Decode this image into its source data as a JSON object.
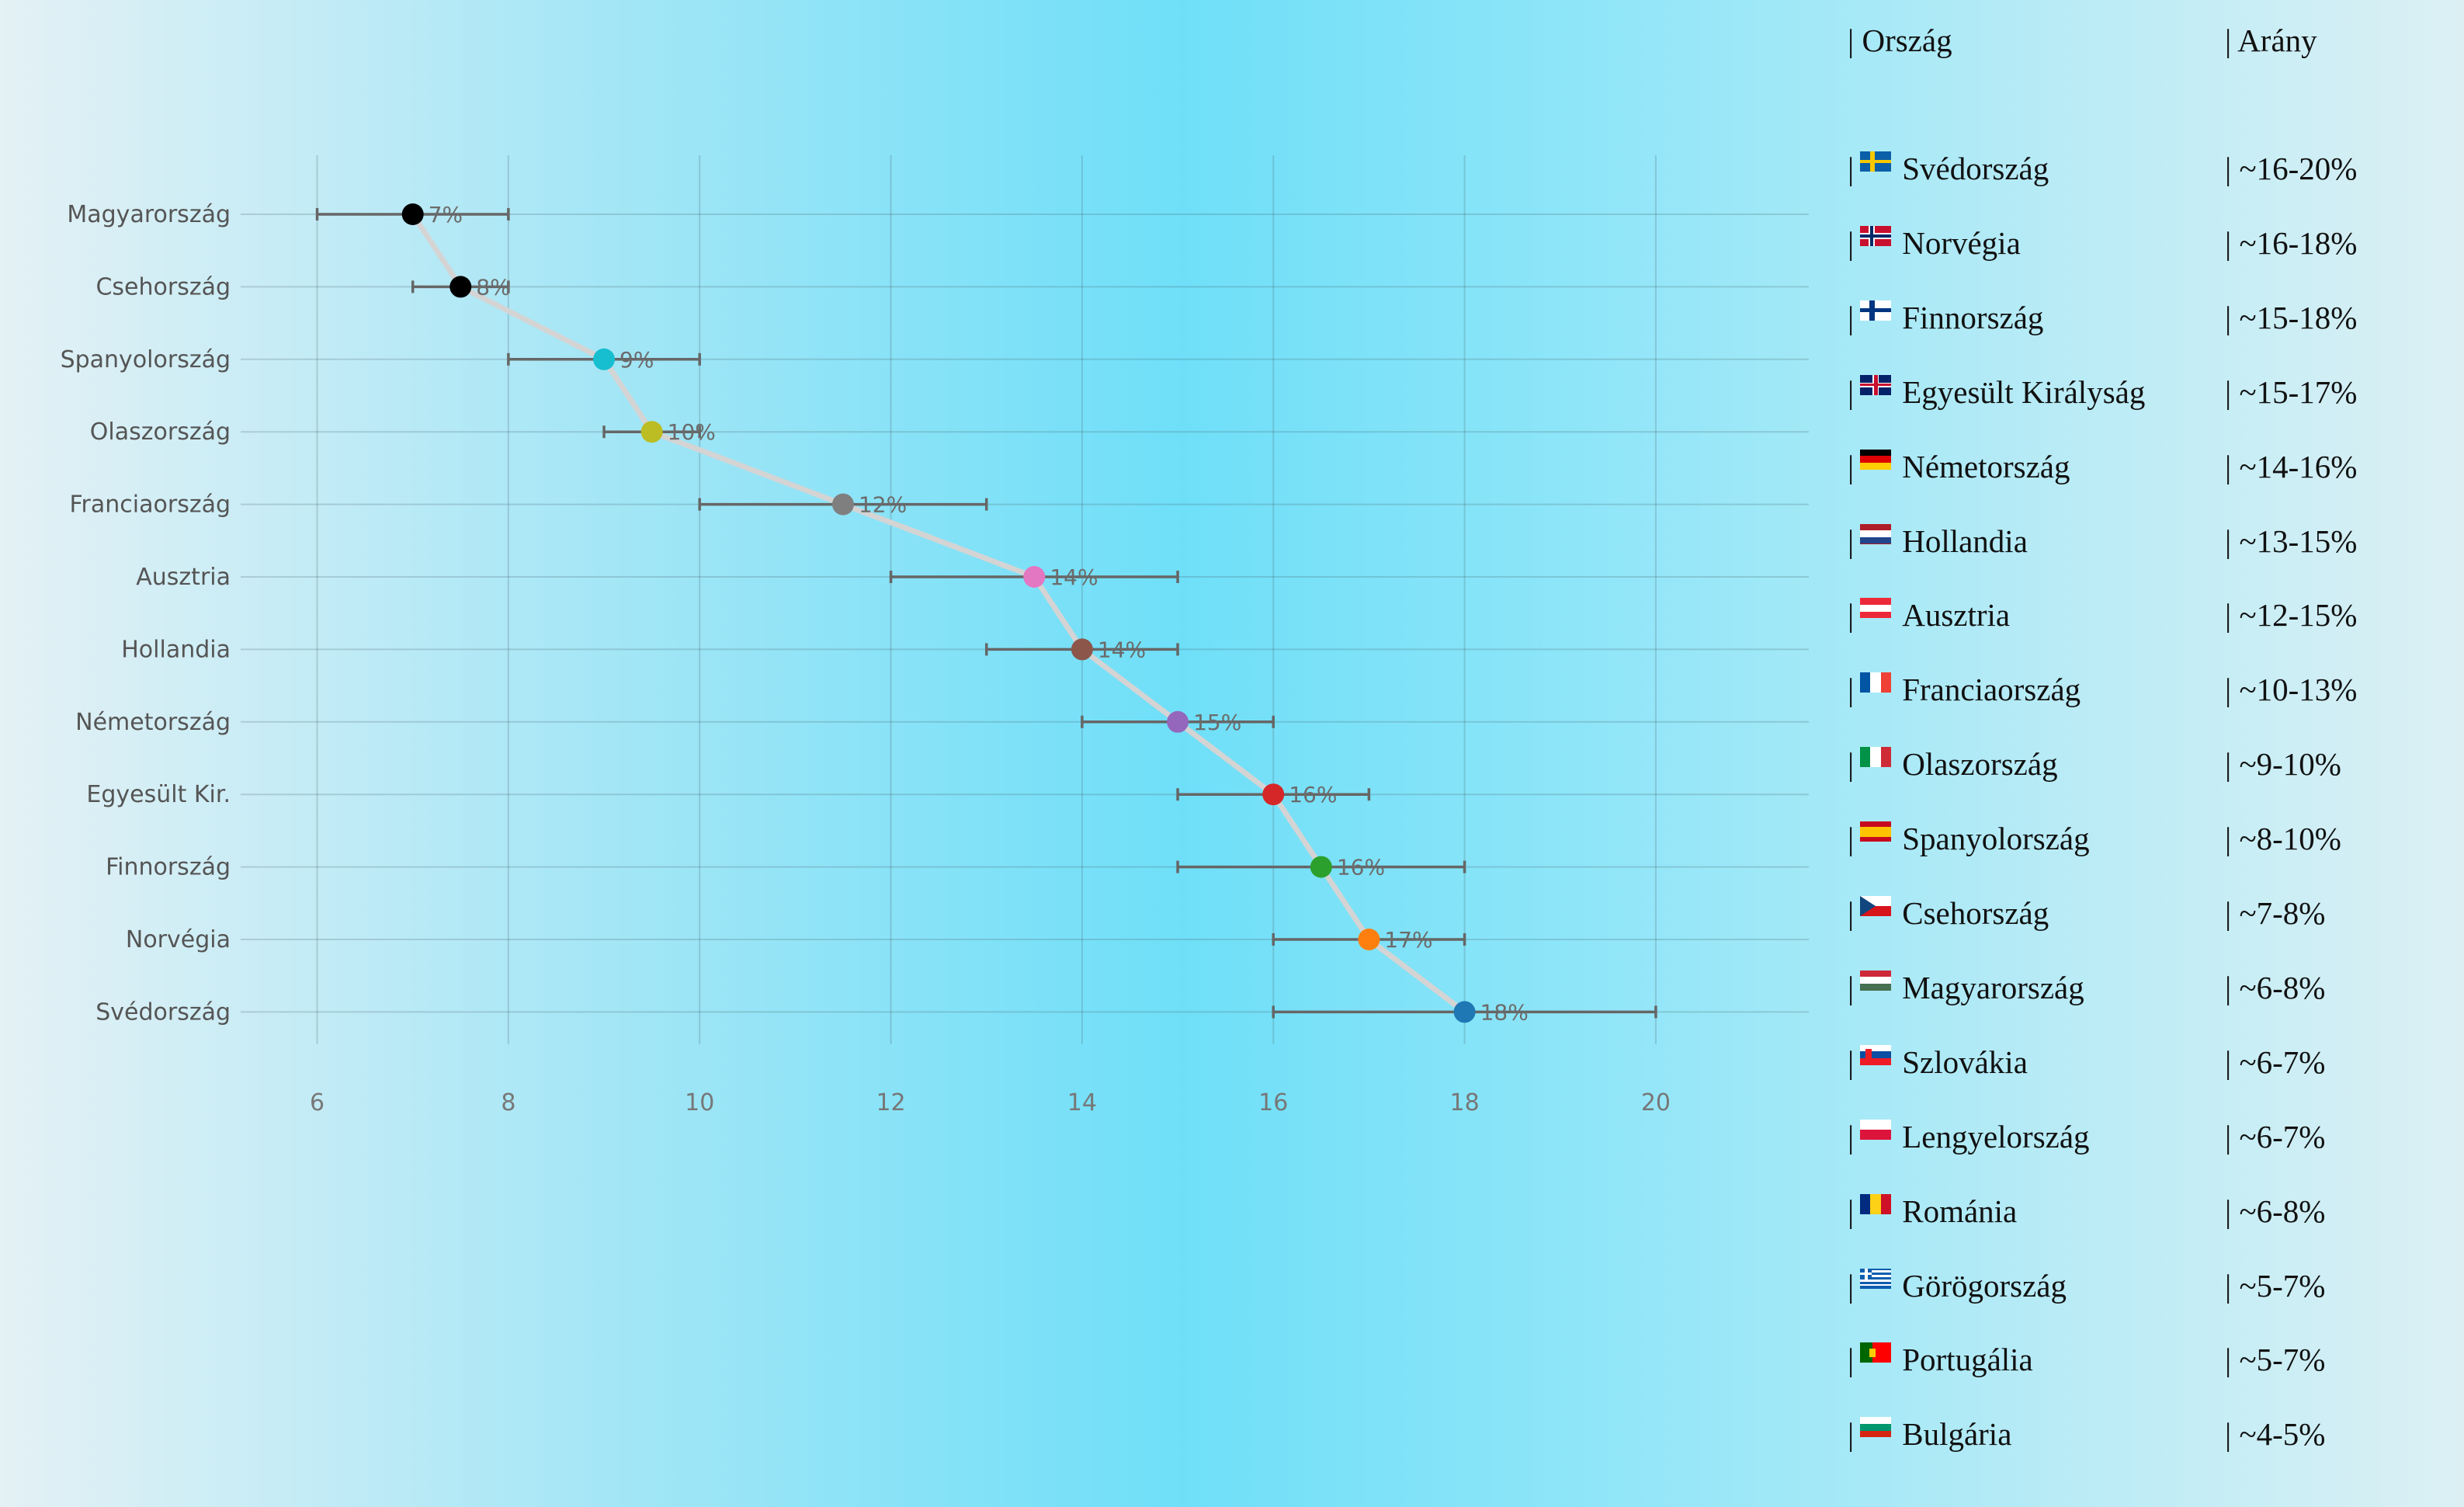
{
  "chart_data": {
    "type": "scatter",
    "title": "",
    "xlabel": "",
    "ylabel": "",
    "xlim": [
      5.2,
      21.6
    ],
    "xticks": [
      6,
      8,
      10,
      12,
      14,
      16,
      18,
      20
    ],
    "grid": true,
    "connecting_line": true,
    "points": [
      {
        "label": "Magyarország",
        "value": 7,
        "err_low": 6,
        "err_high": 8,
        "data_label": "7%",
        "color": "#000000"
      },
      {
        "label": "Csehország",
        "value": 7.5,
        "err_low": 7,
        "err_high": 8,
        "data_label": "8%",
        "color": "#000000"
      },
      {
        "label": "Spanyolország",
        "value": 9,
        "err_low": 8,
        "err_high": 10,
        "data_label": "9%",
        "color": "#17becf"
      },
      {
        "label": "Olaszország",
        "value": 9.5,
        "err_low": 9,
        "err_high": 10,
        "data_label": "10%",
        "color": "#bcbd22"
      },
      {
        "label": "Franciaország",
        "value": 11.5,
        "err_low": 10,
        "err_high": 13,
        "data_label": "12%",
        "color": "#7f7f7f"
      },
      {
        "label": "Ausztria",
        "value": 13.5,
        "err_low": 12,
        "err_high": 15,
        "data_label": "14%",
        "color": "#e377c2"
      },
      {
        "label": "Hollandia",
        "value": 14,
        "err_low": 13,
        "err_high": 15,
        "data_label": "14%",
        "color": "#8c564b"
      },
      {
        "label": "Németország",
        "value": 15,
        "err_low": 14,
        "err_high": 16,
        "data_label": "15%",
        "color": "#9467bd"
      },
      {
        "label": "Egyesült Kir.",
        "value": 16,
        "err_low": 15,
        "err_high": 17,
        "data_label": "16%",
        "color": "#d62728"
      },
      {
        "label": "Finnország",
        "value": 16.5,
        "err_low": 15,
        "err_high": 18,
        "data_label": "16%",
        "color": "#2ca02c"
      },
      {
        "label": "Norvégia",
        "value": 17,
        "err_low": 16,
        "err_high": 18,
        "data_label": "17%",
        "color": "#ff7f0e"
      },
      {
        "label": "Svédország",
        "value": 18,
        "err_low": 16,
        "err_high": 20,
        "data_label": "18%",
        "color": "#1f77b4"
      }
    ]
  },
  "table": {
    "header": {
      "country": "| Ország",
      "ratio": "| Arány"
    },
    "rows": [
      {
        "country": "Svédország",
        "ratio": "| ~16-20%",
        "flag": "flag-se"
      },
      {
        "country": "Norvégia",
        "ratio": "| ~16-18%",
        "flag": "flag-no"
      },
      {
        "country": "Finnország",
        "ratio": "| ~15-18%",
        "flag": "flag-fi"
      },
      {
        "country": "Egyesült Királyság",
        "ratio": "| ~15-17%",
        "flag": "flag-gb"
      },
      {
        "country": "Németország",
        "ratio": "| ~14-16%",
        "flag": "flag-de"
      },
      {
        "country": "Hollandia",
        "ratio": "| ~13-15%",
        "flag": "flag-nl"
      },
      {
        "country": "Ausztria",
        "ratio": "| ~12-15%",
        "flag": "flag-at"
      },
      {
        "country": "Franciaország",
        "ratio": "| ~10-13%",
        "flag": "flag-fr"
      },
      {
        "country": "Olaszország",
        "ratio": "| ~9-10%",
        "flag": "flag-it"
      },
      {
        "country": "Spanyolország",
        "ratio": "| ~8-10%",
        "flag": "flag-es"
      },
      {
        "country": "Csehország",
        "ratio": "| ~7-8%",
        "flag": "flag-cz"
      },
      {
        "country": "Magyarország",
        "ratio": "| ~6-8%",
        "flag": "flag-hu"
      },
      {
        "country": "Szlovákia",
        "ratio": "| ~6-7%",
        "flag": "flag-sk"
      },
      {
        "country": "Lengyelország",
        "ratio": "| ~6-7%",
        "flag": "flag-pl"
      },
      {
        "country": "Románia",
        "ratio": "| ~6-8%",
        "flag": "flag-ro"
      },
      {
        "country": "Görögország",
        "ratio": "| ~5-7%",
        "flag": "flag-gr"
      },
      {
        "country": "Portugália",
        "ratio": "| ~5-7%",
        "flag": "flag-pt"
      },
      {
        "country": "Bulgária",
        "ratio": "| ~4-5%",
        "flag": "flag-bg"
      }
    ]
  }
}
